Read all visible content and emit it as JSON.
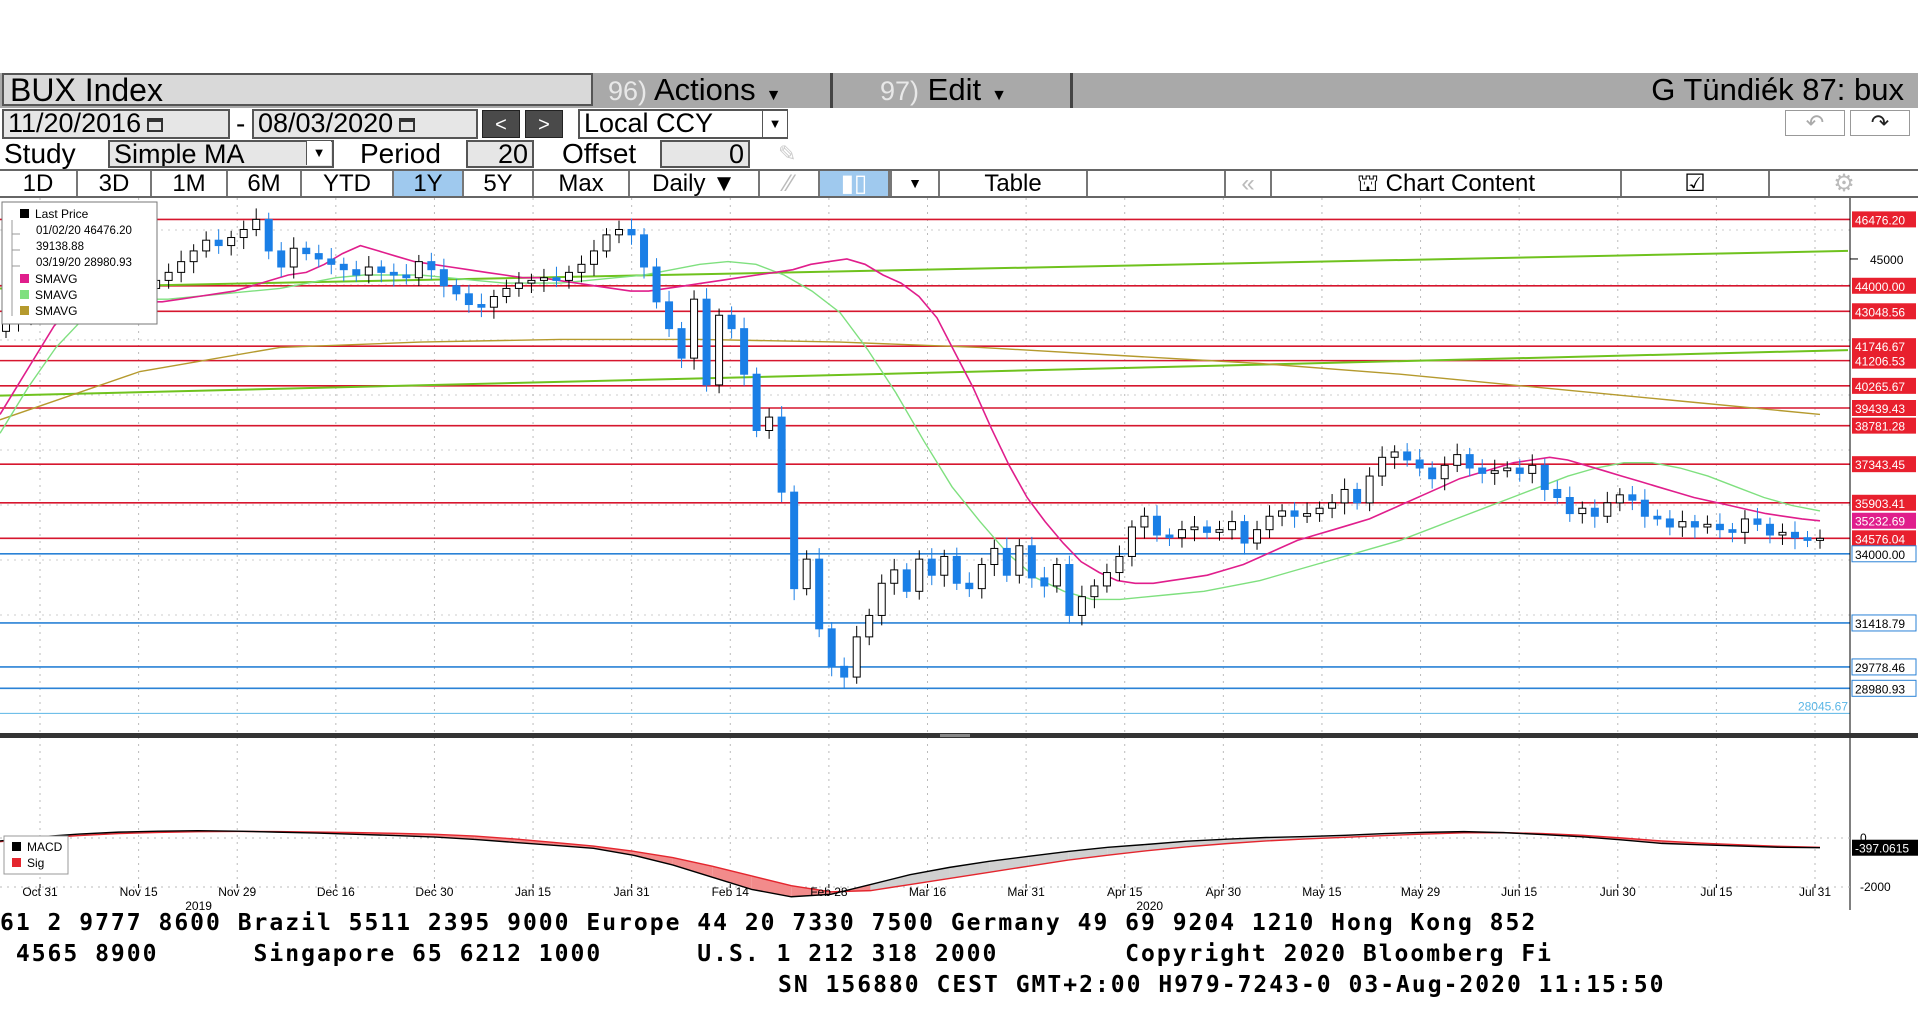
{
  "header": {
    "security": "BUX Index",
    "actions_num": "96)",
    "actions_label": "Actions",
    "edit_num": "97)",
    "edit_label": "Edit",
    "user": "G Tündiék 87: bux"
  },
  "controls": {
    "start_date": "11/20/2016",
    "dash": "-",
    "end_date": "08/03/2020",
    "prev": "<",
    "next": ">",
    "currency": "Local CCY",
    "study_label": "Study",
    "study_value": "Simple MA",
    "period_label": "Period",
    "period_value": "20",
    "offset_label": "Offset",
    "offset_value": "0"
  },
  "tabs": {
    "ranges": [
      "1D",
      "3D",
      "1M",
      "6M",
      "YTD",
      "1Y",
      "5Y",
      "Max"
    ],
    "selected": "1Y",
    "frequency": "Daily",
    "table": "Table",
    "chart_content": "Chart Content"
  },
  "legend": {
    "title": "Last Price",
    "hi": "01/02/20 46476.20",
    "avg": "39138.88",
    "lo": "03/19/20 28980.93",
    "ma1": "SMAVG",
    "ma2": "SMAVG",
    "ma3": "SMAVG"
  },
  "macd_legend": {
    "macd": "MACD",
    "sig": "Sig"
  },
  "colors": {
    "up": "#000000",
    "down": "#1a7fe6",
    "hline_red": "#d6162e",
    "hline_blue": "#2a82d6",
    "ma_pink": "#e01e8c",
    "ma_lightgreen": "#7fe07f",
    "ma_olive": "#b59a2e",
    "trend_green": "#6fc21e"
  },
  "chart_data": {
    "type": "candlestick",
    "ylim": [
      27500,
      47200
    ],
    "y_ticks": [
      45000
    ],
    "price_labels": [
      {
        "value": 46476.2,
        "text": "46476.20",
        "kind": "red"
      },
      {
        "value": 44000.0,
        "text": "44000.00",
        "kind": "red"
      },
      {
        "value": 43048.56,
        "text": "43048.56",
        "kind": "red"
      },
      {
        "value": 41746.67,
        "text": "41746.67",
        "kind": "red"
      },
      {
        "value": 41206.53,
        "text": "41206.53",
        "kind": "red"
      },
      {
        "value": 40265.67,
        "text": "40265.67",
        "kind": "red"
      },
      {
        "value": 39439.43,
        "text": "39439.43",
        "kind": "red"
      },
      {
        "value": 38781.28,
        "text": "38781.28",
        "kind": "red"
      },
      {
        "value": 37343.45,
        "text": "37343.45",
        "kind": "red"
      },
      {
        "value": 35903.41,
        "text": "35903.41",
        "kind": "red"
      },
      {
        "value": 35232.69,
        "text": "35232.69",
        "kind": "pink"
      },
      {
        "value": 34576.04,
        "text": "34576.04",
        "kind": "red"
      },
      {
        "value": 34000.0,
        "text": "34000.00",
        "kind": "blue"
      },
      {
        "value": 31418.79,
        "text": "31418.79",
        "kind": "blue"
      },
      {
        "value": 29778.46,
        "text": "29778.46",
        "kind": "blue"
      },
      {
        "value": 28980.93,
        "text": "28980.93",
        "kind": "blue"
      },
      {
        "value": 28045.67,
        "text": "28045.67",
        "kind": "plain"
      }
    ],
    "x_labels": [
      "Oct 31",
      "Nov 15",
      "Nov 29",
      "Dec 16",
      "Dec 30",
      "Jan 15",
      "Jan 31",
      "Feb 14",
      "Feb 28",
      "Mar 16",
      "Mar 31",
      "Apr 15",
      "Apr 30",
      "May 15",
      "May 29",
      "Jun 15",
      "Jun 30",
      "Jul 15",
      "Jul 31"
    ],
    "year_labels": [
      "2019",
      "2020"
    ],
    "close": [
      42600,
      42900,
      43400,
      43700,
      43900,
      44100,
      43800,
      43650,
      43400,
      43550,
      43700,
      43900,
      44200,
      44500,
      44900,
      45300,
      45700,
      45500,
      45800,
      46100,
      46476,
      45300,
      44700,
      45400,
      45200,
      45000,
      44800,
      44600,
      44400,
      44700,
      44500,
      44400,
      44300,
      44900,
      44600,
      44000,
      43700,
      43300,
      43200,
      43600,
      43900,
      44100,
      44200,
      44300,
      44200,
      44500,
      44800,
      45300,
      45900,
      46100,
      45900,
      44700,
      43400,
      42400,
      41300,
      43500,
      40300,
      42900,
      42400,
      40700,
      38600,
      39100,
      36300,
      32700,
      33800,
      31200,
      29800,
      29400,
      30900,
      31700,
      32900,
      33400,
      32600,
      33800,
      33200,
      33900,
      32900,
      32700,
      33600,
      34200,
      33200,
      34300,
      33100,
      32800,
      33600,
      31700,
      32400,
      32800,
      33300,
      33900,
      35000,
      35400,
      34700,
      34600,
      34900,
      35000,
      34800,
      34900,
      35200,
      34400,
      34900,
      35400,
      35600,
      35400,
      35500,
      35700,
      35900,
      36400,
      35900,
      36900,
      37600,
      37800,
      37500,
      37200,
      36800,
      37300,
      37700,
      37200,
      37000,
      37100,
      37200,
      37000,
      37300,
      36400,
      36100,
      35500,
      35700,
      35400,
      35900,
      36200,
      36000,
      35400,
      35300,
      35000,
      35200,
      35000,
      35100,
      34900,
      34800,
      35300,
      35100,
      34700,
      34800,
      34600,
      34500,
      34576
    ],
    "ma_pink": [
      39200,
      40300,
      41400,
      42500,
      43200,
      43600,
      43600,
      43500,
      43400,
      43400,
      43500,
      43600,
      43700,
      43800,
      44000,
      44200,
      44400,
      44500,
      44800,
      45200,
      45500,
      45300,
      45100,
      44900,
      44800,
      44700,
      44600,
      44500,
      44400,
      44300,
      44300,
      44200,
      44100,
      44000,
      43900,
      43800,
      43800,
      43900,
      44000,
      44100,
      44200,
      44300,
      44400,
      44500,
      44600,
      44800,
      44900,
      45000,
      44800,
      44400,
      44100,
      43600,
      42800,
      41500,
      40200,
      38700,
      37300,
      36100,
      35200,
      34400,
      33700,
      33300,
      33000,
      32900,
      32900,
      33000,
      33100,
      33200,
      33400,
      33600,
      33900,
      34200,
      34500,
      34700,
      34900,
      35100,
      35300,
      35600,
      35900,
      36200,
      36500,
      36800,
      37000,
      37200,
      37400,
      37500,
      37600,
      37500,
      37300,
      37100,
      36900,
      36700,
      36500,
      36300,
      36100,
      35950,
      35800,
      35650,
      35500,
      35400,
      35300,
      35232
    ],
    "ma_lightgreen": [
      38500,
      40200,
      41700,
      42800,
      43400,
      43500,
      43500,
      43600,
      43700,
      43800,
      43900,
      44100,
      44300,
      44400,
      44400,
      44400,
      44300,
      44200,
      44100,
      44100,
      44100,
      44200,
      44300,
      44400,
      44600,
      44800,
      44900,
      44800,
      44400,
      43800,
      43000,
      41600,
      40000,
      38200,
      36500,
      35200,
      34000,
      33100,
      32600,
      32300,
      32300,
      32400,
      32500,
      32600,
      32800,
      33000,
      33300,
      33600,
      33900,
      34200,
      34500,
      34900,
      35300,
      35700,
      36100,
      36500,
      36900,
      37200,
      37400,
      37400,
      37200,
      36900,
      36500,
      36100,
      35800,
      35600
    ],
    "ma_olive": [
      39000,
      40800,
      41700,
      41900,
      42000,
      42000,
      41900,
      41700,
      41400,
      41100,
      40700,
      40200,
      39700,
      39200
    ],
    "macd": [
      -120,
      50,
      160,
      240,
      280,
      300,
      280,
      240,
      200,
      150,
      100,
      40,
      -60,
      -180,
      -300,
      -420,
      -700,
      -1100,
      -1600,
      -2100,
      -2400,
      -2300,
      -1900,
      -1500,
      -1200,
      -950,
      -750,
      -550,
      -380,
      -260,
      -130,
      -50,
      20,
      60,
      110,
      180,
      230,
      260,
      220,
      140,
      50,
      -80,
      -220,
      -280,
      -330,
      -380,
      -397
    ],
    "sig": [
      -150,
      0,
      100,
      180,
      230,
      260,
      270,
      260,
      240,
      220,
      190,
      150,
      80,
      -40,
      -180,
      -330,
      -540,
      -800,
      -1150,
      -1550,
      -1950,
      -2200,
      -2150,
      -1900,
      -1650,
      -1400,
      -1150,
      -900,
      -700,
      -520,
      -360,
      -230,
      -120,
      -40,
      30,
      100,
      160,
      210,
      220,
      180,
      110,
      0,
      -120,
      -210,
      -280,
      -340,
      -380
    ]
  },
  "macd_axis": {
    "ticks": [
      "0",
      "-2000"
    ],
    "value_label": "-397.0615"
  },
  "ticker": {
    "line1": "61 2 9777 8600 Brazil 5511 2395 9000 Europe 44 20 7330 7500 Germany 49 69 9204 1210 Hong Kong 852",
    "line2": " 4565 8900      Singapore 65 6212 1000      U.S. 1 212 318 2000        Copyright 2020 Bloomberg Fi",
    "line3": "SN 156880 CEST GMT+2:00 H979-7243-0 03-Aug-2020 11:15:50"
  }
}
